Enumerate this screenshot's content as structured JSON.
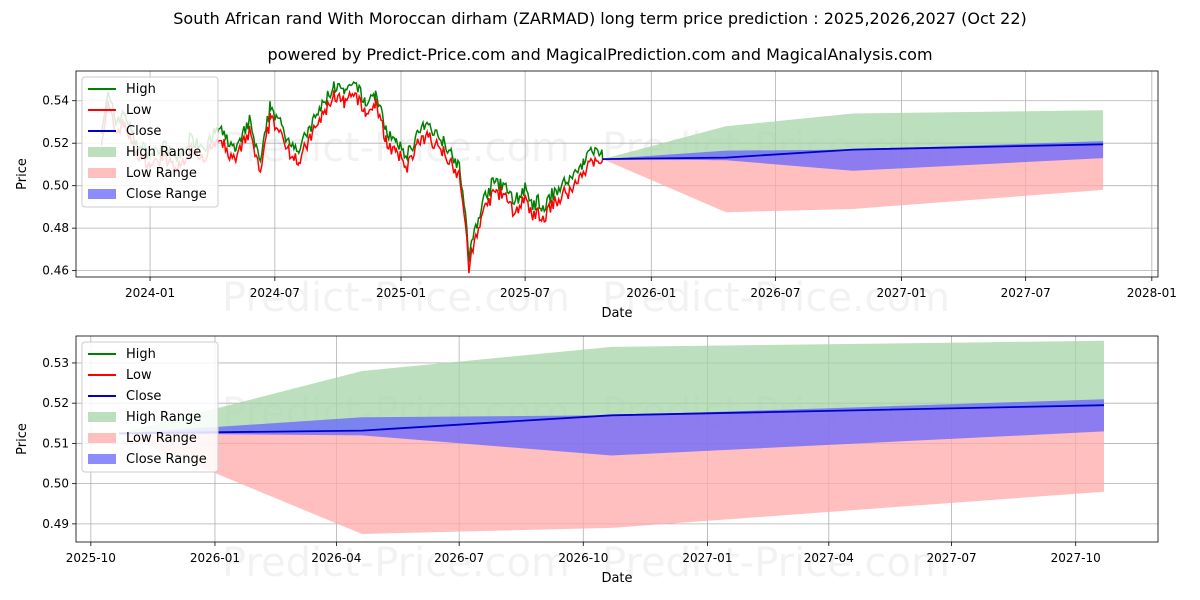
{
  "header": {
    "title": "South African rand With Moroccan dirham (ZARMAD) long term price prediction : 2025,2026,2027 (Oct 22)",
    "subtitle": "powered by Predict-Price.com and MagicalPrediction.com and MagicalAnalysis.com"
  },
  "watermark": "Predict-Price.com",
  "colors": {
    "high": "#008000",
    "low": "#ff0000",
    "close": "#0000cc",
    "high_range": "#a5d6a7",
    "low_range": "#ffaaaa",
    "close_range": "#6666ff",
    "grid": "#b0b0b0"
  },
  "chart_data": [
    {
      "type": "line",
      "name": "history-and-forecast",
      "xlabel": "Date",
      "ylabel": "Price",
      "xlim": [
        "2023-09-15",
        "2028-01-10"
      ],
      "ylim": [
        0.457,
        0.554
      ],
      "grid": true,
      "legend_position": "top-left",
      "x_ticks": [
        "2024-01",
        "2024-07",
        "2025-01",
        "2025-07",
        "2026-01",
        "2026-07",
        "2027-01",
        "2027-07",
        "2028-01"
      ],
      "x_tick_dates": [
        "2024-01-01",
        "2024-07-01",
        "2025-01-01",
        "2025-07-01",
        "2026-01-01",
        "2026-07-01",
        "2027-01-01",
        "2027-07-01",
        "2028-01-01"
      ],
      "y_ticks": [
        0.46,
        0.48,
        0.5,
        0.52,
        0.54
      ],
      "y_tick_labels": [
        "0.46",
        "0.48",
        "0.50",
        "0.52",
        "0.54"
      ],
      "legend": [
        "High",
        "Low",
        "Close",
        "High Range",
        "Low Range",
        "Close Range"
      ],
      "history_anchors": [
        [
          "2023-10-22",
          0.524
        ],
        [
          "2023-11-01",
          0.54
        ],
        [
          "2023-11-12",
          0.528
        ],
        [
          "2023-11-25",
          0.532
        ],
        [
          "2023-12-10",
          0.518
        ],
        [
          "2024-01-01",
          0.512
        ],
        [
          "2024-01-20",
          0.516
        ],
        [
          "2024-02-10",
          0.51
        ],
        [
          "2024-03-01",
          0.52
        ],
        [
          "2024-03-20",
          0.516
        ],
        [
          "2024-04-10",
          0.524
        ],
        [
          "2024-05-05",
          0.514
        ],
        [
          "2024-05-25",
          0.528
        ],
        [
          "2024-06-10",
          0.508
        ],
        [
          "2024-06-25",
          0.536
        ],
        [
          "2024-07-15",
          0.522
        ],
        [
          "2024-08-05",
          0.514
        ],
        [
          "2024-08-25",
          0.527
        ],
        [
          "2024-09-10",
          0.536
        ],
        [
          "2024-09-25",
          0.545
        ],
        [
          "2024-10-10",
          0.541
        ],
        [
          "2024-10-28",
          0.545
        ],
        [
          "2024-11-10",
          0.536
        ],
        [
          "2024-11-25",
          0.541
        ],
        [
          "2024-12-10",
          0.524
        ],
        [
          "2024-12-25",
          0.517
        ],
        [
          "2025-01-10",
          0.512
        ],
        [
          "2025-01-25",
          0.522
        ],
        [
          "2025-02-10",
          0.526
        ],
        [
          "2025-02-28",
          0.52
        ],
        [
          "2025-03-15",
          0.514
        ],
        [
          "2025-03-28",
          0.506
        ],
        [
          "2025-04-05",
          0.482
        ],
        [
          "2025-04-10",
          0.464
        ],
        [
          "2025-04-20",
          0.478
        ],
        [
          "2025-05-05",
          0.494
        ],
        [
          "2025-05-20",
          0.5
        ],
        [
          "2025-06-05",
          0.496
        ],
        [
          "2025-06-15",
          0.49
        ],
        [
          "2025-07-01",
          0.496
        ],
        [
          "2025-07-10",
          0.488
        ],
        [
          "2025-07-20",
          0.49
        ],
        [
          "2025-07-25",
          0.484
        ],
        [
          "2025-08-05",
          0.492
        ],
        [
          "2025-08-25",
          0.498
        ],
        [
          "2025-09-10",
          0.502
        ],
        [
          "2025-09-25",
          0.51
        ],
        [
          "2025-10-05",
          0.514
        ],
        [
          "2025-10-22",
          0.5125
        ]
      ],
      "forecast": {
        "dates": [
          "2025-10-22",
          "2026-04-20",
          "2026-10-22",
          "2027-10-22"
        ],
        "high_range_top": [
          0.5125,
          0.528,
          0.534,
          0.5355
        ],
        "close_range_top": [
          0.5125,
          0.5165,
          0.517,
          0.521
        ],
        "close_range_bottom": [
          0.5125,
          0.512,
          0.507,
          0.513
        ],
        "low_range_bottom": [
          0.5125,
          0.4875,
          0.489,
          0.498
        ],
        "close": [
          0.5125,
          0.5132,
          0.517,
          0.5195
        ]
      }
    },
    {
      "type": "line",
      "name": "forecast-zoom",
      "xlabel": "Date",
      "ylabel": "Price",
      "xlim": [
        "2025-09-20",
        "2027-12-01"
      ],
      "ylim": [
        0.4855,
        0.5367
      ],
      "grid": true,
      "legend_position": "top-left",
      "x_ticks": [
        "2025-10",
        "2026-01",
        "2026-04",
        "2026-07",
        "2026-10",
        "2027-01",
        "2027-04",
        "2027-07",
        "2027-10"
      ],
      "x_tick_dates": [
        "2025-10-01",
        "2026-01-01",
        "2026-04-01",
        "2026-07-01",
        "2026-10-01",
        "2027-01-01",
        "2027-04-01",
        "2027-07-01",
        "2027-10-01"
      ],
      "y_ticks": [
        0.49,
        0.5,
        0.51,
        0.52,
        0.53
      ],
      "y_tick_labels": [
        "0.49",
        "0.50",
        "0.51",
        "0.52",
        "0.53"
      ],
      "legend": [
        "High",
        "Low",
        "Close",
        "High Range",
        "Low Range",
        "Close Range"
      ],
      "forecast": {
        "dates": [
          "2025-10-22",
          "2026-04-20",
          "2026-10-22",
          "2027-10-22"
        ],
        "high_range_top": [
          0.5125,
          0.528,
          0.534,
          0.5355
        ],
        "close_range_top": [
          0.5125,
          0.5165,
          0.517,
          0.521
        ],
        "close_range_bottom": [
          0.5125,
          0.512,
          0.507,
          0.513
        ],
        "low_range_bottom": [
          0.5125,
          0.4875,
          0.489,
          0.498
        ],
        "close": [
          0.5125,
          0.5132,
          0.517,
          0.5195
        ]
      }
    }
  ]
}
